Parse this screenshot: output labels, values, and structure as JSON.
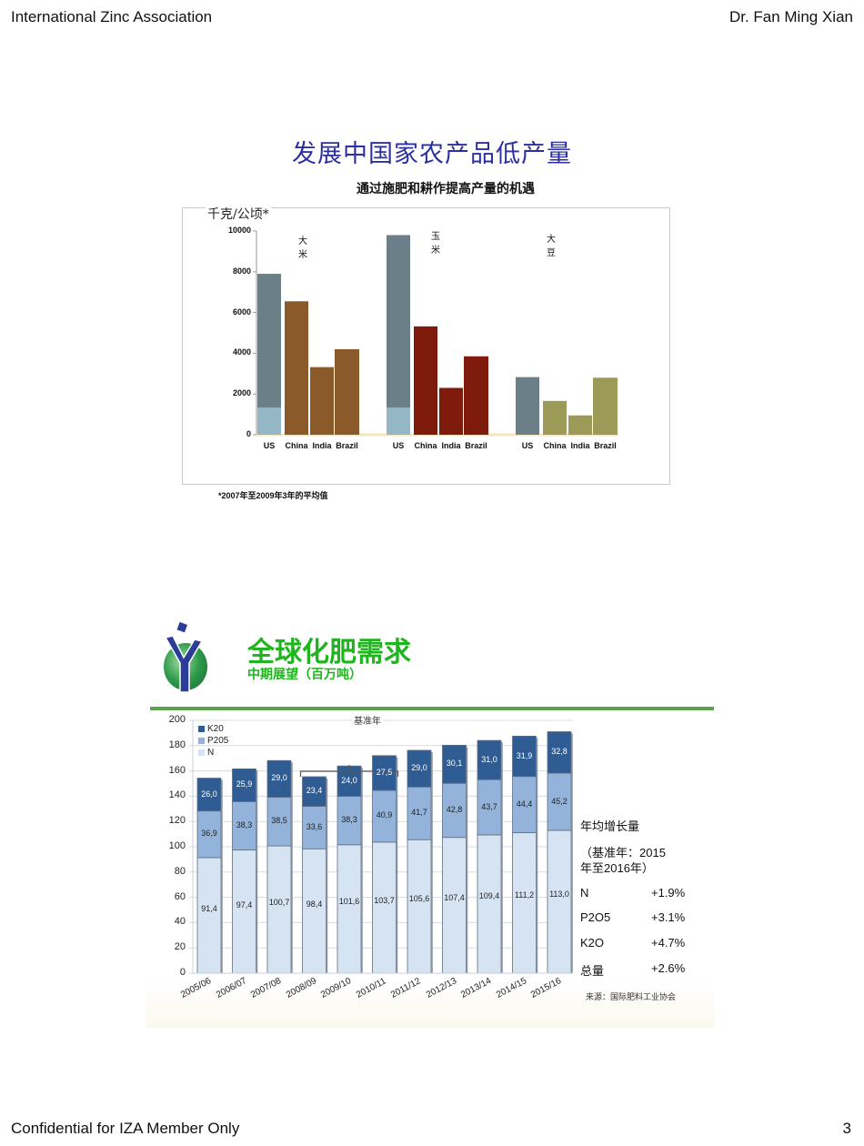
{
  "header": {
    "left": "International Zinc Association",
    "right": "Dr. Fan Ming Xian"
  },
  "footer": {
    "left": "Confidential for IZA Member  Only",
    "page_number": "3"
  },
  "slide1": {
    "title": "发展中国家农产品低产量",
    "subtitle": "通过施肥和耕作提高产量的机遇",
    "unit": "千克/公顷*",
    "note": "*2007年至2009年3年的平均值"
  },
  "slide2": {
    "title": "全球化肥需求",
    "subtitle": "中期展望（百万吨）",
    "bracket_label": "基准年",
    "side_title": "年均增长量",
    "side_base1": "（基准年：2015",
    "side_base2": "年至2016年）",
    "growth": [
      {
        "label": "N",
        "value": "+1.9%"
      },
      {
        "label": "P2O5",
        "value": "+3.1%"
      },
      {
        "label": "K2O",
        "value": "+4.7%"
      },
      {
        "label": "总量",
        "value": "+2.6%"
      }
    ],
    "source": "来源：国际肥料工业协会"
  },
  "chart_data": [
    {
      "type": "bar",
      "title": "发展中国家农产品低产量",
      "subtitle": "通过施肥和耕作提高产量的机遇",
      "ylabel": "千克/公顷*",
      "xlabel": "",
      "ylim": [
        0,
        10000
      ],
      "yticks": [
        0,
        2000,
        4000,
        6000,
        8000,
        10000
      ],
      "grid": false,
      "groups": [
        "大米",
        "玉米",
        "大豆"
      ],
      "categories": [
        "US",
        "China",
        "India",
        "Brazil"
      ],
      "series": [
        {
          "name": "大米",
          "values": [
            7900,
            6550,
            3320,
            4200
          ],
          "colors": [
            "#6a7f87",
            "#8a5a2a",
            "#8a5a2a",
            "#8a5a2a"
          ]
        },
        {
          "name": "玉米",
          "values": [
            9800,
            5320,
            2300,
            3850
          ],
          "colors": [
            "#6a7f87",
            "#7e1b0d",
            "#7e1b0d",
            "#7e1b0d"
          ]
        },
        {
          "name": "大豆",
          "values": [
            2830,
            1660,
            950,
            2800
          ],
          "colors": [
            "#6a7f87",
            "#9b9a56",
            "#9b9a56",
            "#9b9a56"
          ]
        }
      ],
      "annotation": "*2007年至2009年3年的平均值"
    },
    {
      "type": "bar",
      "stacked": true,
      "title": "全球化肥需求",
      "subtitle": "中期展望（百万吨）",
      "ylim": [
        0,
        200
      ],
      "yticks": [
        0,
        20,
        40,
        60,
        80,
        100,
        120,
        140,
        160,
        180,
        200
      ],
      "grid": true,
      "legend_position": "top-left",
      "categories": [
        "2005/06",
        "2006/07",
        "2007/08",
        "2008/09",
        "2009/10",
        "2010/11",
        "2011/12",
        "2012/13",
        "2013/14",
        "2014/15",
        "2015/16"
      ],
      "series": [
        {
          "name": "N",
          "color": "#d6e3f2",
          "values": [
            91.4,
            97.4,
            100.7,
            98.4,
            101.6,
            103.7,
            105.6,
            107.4,
            109.4,
            111.2,
            113.0
          ],
          "labels": [
            "91,4",
            "97,4",
            "100,7",
            "98,4",
            "101,6",
            "103,7",
            "105,6",
            "107,4",
            "109,4",
            "111,2",
            "113,0"
          ]
        },
        {
          "name": "P205",
          "color": "#93b3da",
          "values": [
            36.9,
            38.3,
            38.5,
            33.6,
            38.3,
            40.9,
            41.7,
            42.8,
            43.7,
            44.4,
            45.2
          ],
          "labels": [
            "36,9",
            "38,3",
            "38,5",
            "33,6",
            "38,3",
            "40,9",
            "41,7",
            "42,8",
            "43,7",
            "44,4",
            "45,2"
          ]
        },
        {
          "name": "K20",
          "color": "#2f5d93",
          "values": [
            26.0,
            25.9,
            29.0,
            23.4,
            24.0,
            27.5,
            29.0,
            30.1,
            31.0,
            31.9,
            32.8
          ],
          "labels": [
            "26,0",
            "25,9",
            "29,0",
            "23,4",
            "24,0",
            "27,5",
            "29,0",
            "30,1",
            "31,0",
            "31,9",
            "32,8"
          ]
        }
      ],
      "annotations": [
        {
          "text": "基准年",
          "span": [
            "2008/09",
            "2010/11"
          ]
        }
      ]
    }
  ]
}
